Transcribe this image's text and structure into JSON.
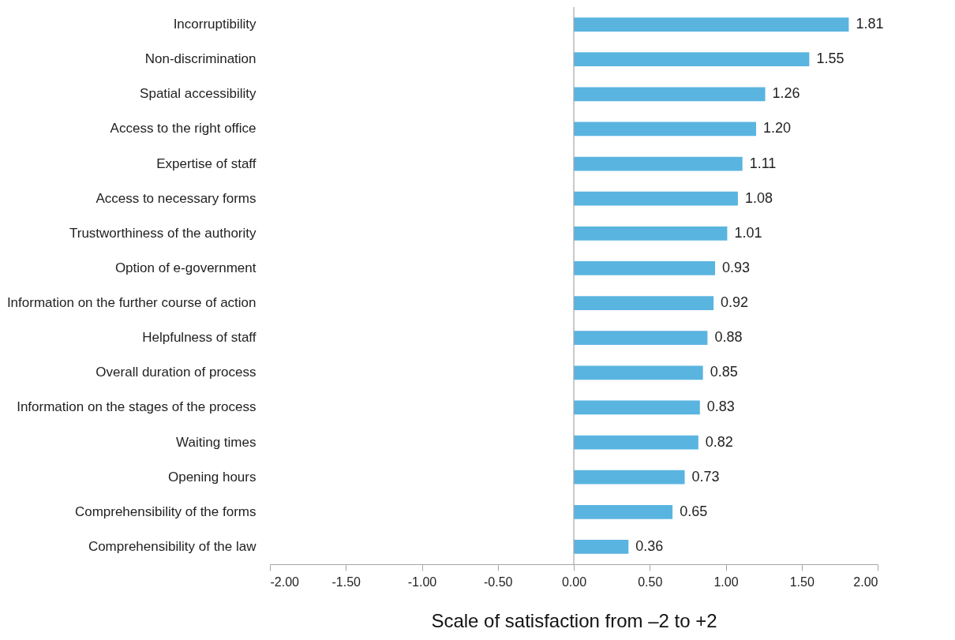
{
  "chart_data": {
    "type": "bar",
    "orientation": "horizontal",
    "xlabel": "Scale of satisfaction from –2 to +2",
    "categories": [
      "Incorruptibility",
      "Non-discrimination",
      "Spatial accessibility",
      "Access to the right office",
      "Expertise of staff",
      "Access to necessary forms",
      "Trustworthiness of the authority",
      "Option of e-government",
      "Information on the further course of action",
      "Helpfulness of staff",
      "Overall duration of process",
      "Information on the stages of the process",
      "Waiting times",
      "Opening hours",
      "Comprehensibility of the forms",
      "Comprehensibility of the law"
    ],
    "values": [
      1.81,
      1.55,
      1.26,
      1.2,
      1.11,
      1.08,
      1.01,
      0.93,
      0.92,
      0.88,
      0.85,
      0.83,
      0.82,
      0.73,
      0.65,
      0.36
    ],
    "value_labels": [
      "1.81",
      "1.55",
      "1.26",
      "1.20",
      "1.11",
      "1.08",
      "1.01",
      "0.93",
      "0.92",
      "0.88",
      "0.85",
      "0.83",
      "0.82",
      "0.73",
      "0.65",
      "0.36"
    ],
    "color": "#5ab4e0",
    "xlim": [
      -2,
      2
    ],
    "xticks": [
      {
        "value": -2,
        "label": "-2.00"
      },
      {
        "value": -1.5,
        "label": "-1.50"
      },
      {
        "value": -1,
        "label": "-1.00"
      },
      {
        "value": -0.5,
        "label": "-0.50"
      },
      {
        "value": 0,
        "label": "0.00"
      },
      {
        "value": 0.5,
        "label": "0.50"
      },
      {
        "value": 1,
        "label": "1.00"
      },
      {
        "value": 1.5,
        "label": "1.50"
      },
      {
        "value": 2,
        "label": "2.00"
      }
    ],
    "ref_lines": [
      {
        "axis": "x",
        "value": 0,
        "color": "#a6a6a6"
      }
    ],
    "grid": false
  }
}
